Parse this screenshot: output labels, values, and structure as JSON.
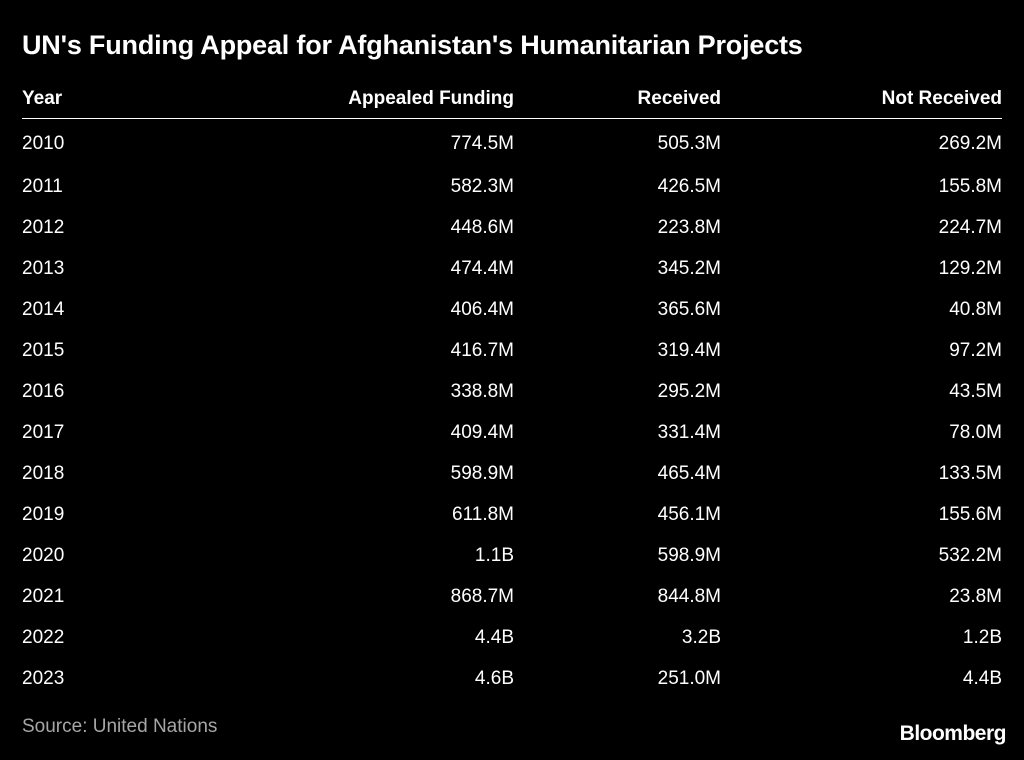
{
  "title": "UN's Funding Appeal for Afghanistan's Humanitarian Projects",
  "source": "Source: United Nations",
  "logo": "Bloomberg",
  "colors": {
    "background": "#000000",
    "text": "#ffffff",
    "source_text": "#a6a6a6"
  },
  "chart_data": {
    "type": "table",
    "title": "UN's Funding Appeal for Afghanistan's Humanitarian Projects",
    "columns": [
      "Year",
      "Appealed Funding",
      "Received",
      "Not Received"
    ],
    "rows": [
      [
        "2010",
        "774.5M",
        "505.3M",
        "269.2M"
      ],
      [
        "2011",
        "582.3M",
        "426.5M",
        "155.8M"
      ],
      [
        "2012",
        "448.6M",
        "223.8M",
        "224.7M"
      ],
      [
        "2013",
        "474.4M",
        "345.2M",
        "129.2M"
      ],
      [
        "2014",
        "406.4M",
        "365.6M",
        "40.8M"
      ],
      [
        "2015",
        "416.7M",
        "319.4M",
        "97.2M"
      ],
      [
        "2016",
        "338.8M",
        "295.2M",
        "43.5M"
      ],
      [
        "2017",
        "409.4M",
        "331.4M",
        "78.0M"
      ],
      [
        "2018",
        "598.9M",
        "465.4M",
        "133.5M"
      ],
      [
        "2019",
        "611.8M",
        "456.1M",
        "155.6M"
      ],
      [
        "2020",
        "1.1B",
        "598.9M",
        "532.2M"
      ],
      [
        "2021",
        "868.7M",
        "844.8M",
        "23.8M"
      ],
      [
        "2022",
        "4.4B",
        "3.2B",
        "1.2B"
      ],
      [
        "2023",
        "4.6B",
        "251.0M",
        "4.4B"
      ]
    ]
  }
}
